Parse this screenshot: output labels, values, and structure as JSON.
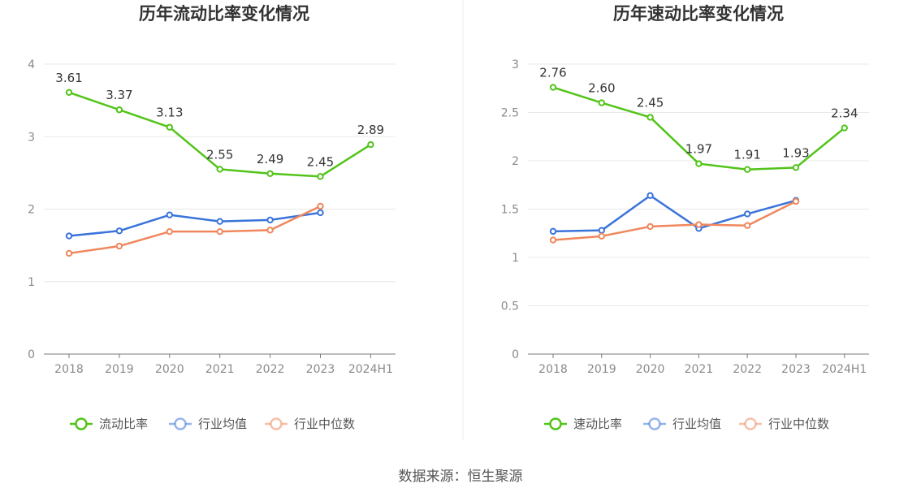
{
  "source_text": "数据来源：恒生聚源",
  "chart_data": [
    {
      "type": "line",
      "title": "历年流动比率变化情况",
      "categories": [
        "2018",
        "2019",
        "2020",
        "2021",
        "2022",
        "2023",
        "2024H1"
      ],
      "ylim": [
        0,
        4
      ],
      "yticks": [
        0,
        1,
        2,
        3,
        4
      ],
      "grid": true,
      "legend_position": "bottom",
      "series": [
        {
          "name": "流动比率",
          "color": "#52c41a",
          "labeled": true,
          "values": [
            3.61,
            3.37,
            3.13,
            2.55,
            2.49,
            2.45,
            2.89
          ],
          "labels": [
            "3.61",
            "3.37",
            "3.13",
            "2.55",
            "2.49",
            "2.45",
            "2.89"
          ]
        },
        {
          "name": "行业均值",
          "color": "#3a74db",
          "labeled": false,
          "values": [
            1.63,
            1.7,
            1.92,
            1.83,
            1.85,
            1.95,
            null
          ]
        },
        {
          "name": "行业中位数",
          "color": "#f0875c",
          "labeled": false,
          "values": [
            1.39,
            1.49,
            1.69,
            1.69,
            1.71,
            2.04,
            null
          ]
        }
      ]
    },
    {
      "type": "line",
      "title": "历年速动比率变化情况",
      "categories": [
        "2018",
        "2019",
        "2020",
        "2021",
        "2022",
        "2023",
        "2024H1"
      ],
      "ylim": [
        0,
        3
      ],
      "yticks": [
        0,
        0.5,
        1,
        1.5,
        2,
        2.5,
        3
      ],
      "grid": true,
      "legend_position": "bottom",
      "series": [
        {
          "name": "速动比率",
          "color": "#52c41a",
          "labeled": true,
          "values": [
            2.76,
            2.6,
            2.45,
            1.97,
            1.91,
            1.93,
            2.34
          ],
          "labels": [
            "2.76",
            "2.60",
            "2.45",
            "1.97",
            "1.91",
            "1.93",
            "2.34"
          ]
        },
        {
          "name": "行业均值",
          "color": "#3a74db",
          "labeled": false,
          "values": [
            1.27,
            1.28,
            1.64,
            1.3,
            1.45,
            1.59,
            null
          ]
        },
        {
          "name": "行业中位数",
          "color": "#f0875c",
          "labeled": false,
          "values": [
            1.18,
            1.22,
            1.32,
            1.34,
            1.33,
            1.58,
            null
          ]
        }
      ]
    }
  ]
}
